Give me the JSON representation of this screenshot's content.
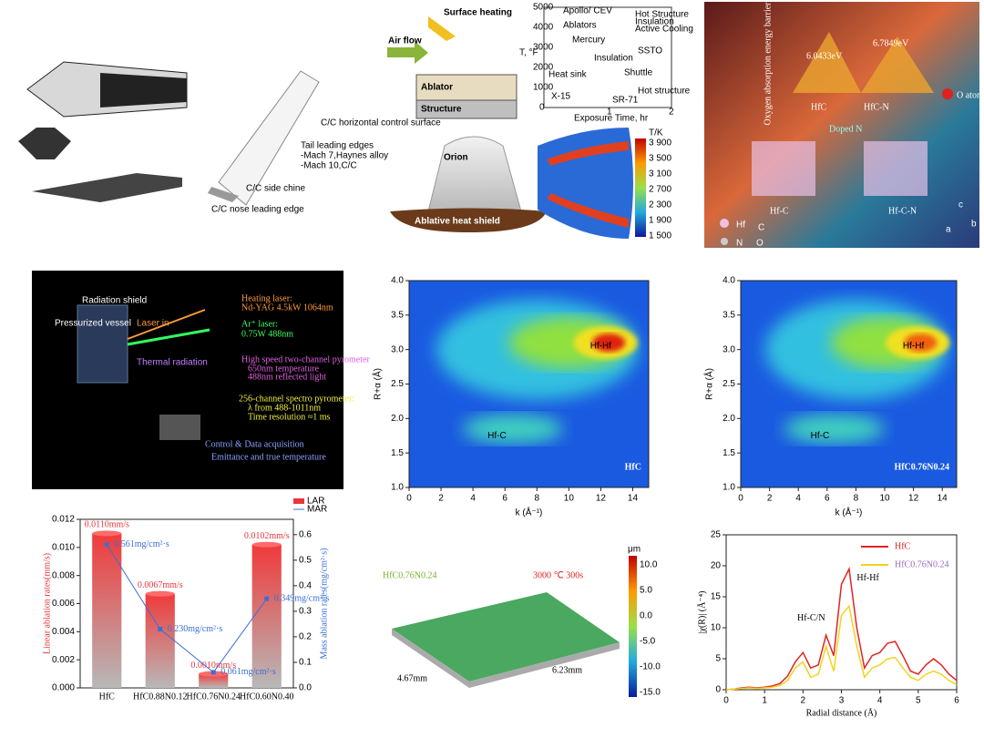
{
  "panels": {
    "vehicle": {
      "labels": [
        "C/C horizontal control surface",
        "Tail leading edges",
        "-Mach 7,Haynes alloy",
        "-Mach 10,C/C",
        "C/C side chine",
        "C/C nose leading edge"
      ]
    },
    "heating": {
      "labels": [
        "Surface heating",
        "Air flow",
        "Ablator",
        "Structure",
        "Orion",
        "Ablative heat shield"
      ],
      "inset": [
        "Apollo/ CEV",
        "Ablators",
        "Mercury",
        "Hot Structure",
        "Insulation",
        "Active Cooling",
        "SSTO",
        "Heat sink",
        "X-15",
        "Insulation",
        "Shuttle",
        "SR-71",
        "Hot structure",
        "T, °F",
        "Exposure Time, hr"
      ],
      "inset_yticks": [
        "5000",
        "4000",
        "3000",
        "2000",
        "1000",
        "0"
      ],
      "inset_xticks": [
        "1",
        "2"
      ],
      "colorbar_title": "T/K",
      "colorbar_ticks": [
        "3 900",
        "3 500",
        "3 100",
        "2 700",
        "2 300",
        "1 900",
        "1 500"
      ]
    },
    "dft": {
      "axis": "Oxygen absorption energy barrier",
      "barriers": [
        "6.0433eV",
        "6.7849eV"
      ],
      "labels": [
        "HfC",
        "HfC-N",
        "Doped N",
        "O atom",
        "Hf-C",
        "Hf-C-N"
      ],
      "legend": [
        "Hf",
        "C",
        "N",
        "O"
      ],
      "axes": [
        "a",
        "b",
        "c"
      ]
    },
    "setup": {
      "labels": [
        "Radiation shield",
        "Pressurized vessel",
        "Laser in",
        "Thermal radiation",
        "Heating laser:",
        "Nd-YAG 4.5kW 1064nm",
        "Ar⁺ laser:",
        "0.75W 488nm",
        "High speed two-channel pyrometer",
        "650nm  temperature",
        "488nm  reflected light",
        "256-channel spectro pyrometer:",
        "λ from 488-1011nm",
        "Time resolution ≈1 ms",
        "Control & Data acquisition",
        "Emittance and true temperature"
      ]
    },
    "surface": {
      "sample": "HfC0.76N0.24",
      "condition": "3000 ℃  300s",
      "dims": [
        "4.67mm",
        "6.23mm"
      ],
      "unit": "μm",
      "colorbar_ticks": [
        "10.0",
        "5.0",
        "0.0",
        "-5.0",
        "-10.0",
        "-15.0"
      ]
    }
  },
  "chart_data": [
    {
      "type": "bar",
      "categories": [
        "HfC",
        "HfC0.88N0.12",
        "HfC0.76N0.24",
        "HfC0.60N0.40"
      ],
      "ylabel": "Linear ablation rates(mm/s)",
      "y2label": "Mass ablation rates(mg/cm²·s)",
      "ylim": [
        0,
        0.012
      ],
      "yticks": [
        {
          "value": 0,
          "label": "0.000"
        },
        0.002,
        0.004,
        0.006,
        0.008,
        {
          "value": 0.01,
          "label": "0.010"
        },
        0.012
      ],
      "y2lim": [
        0,
        0.66
      ],
      "y2ticks": [
        {
          "value": 0,
          "label": "0.0"
        },
        0.1,
        0.2,
        0.3,
        0.4,
        0.5,
        0.6
      ],
      "legend": "top-right",
      "series": [
        {
          "name": "LAR",
          "color": "#e8363a",
          "values": [
            0.011,
            0.0067,
            0.001,
            0.0102
          ],
          "value_labels": [
            "0.0110mm/s",
            "0.0067mm/s",
            "0.0010mm/s",
            "0.0102mm/s"
          ]
        },
        {
          "name": "MAR",
          "color": "#3a6fd8",
          "axis": "y2",
          "values": [
            0.561,
            0.23,
            0.061,
            0.349
          ],
          "value_labels": [
            "0.561mg/cm²·s",
            "0.230mg/cm²·s",
            "0.061mg/cm²·s",
            "0.349mg/cm²·s"
          ]
        }
      ]
    },
    {
      "type": "contour",
      "label": "HfC",
      "xlabel": "k (Å⁻¹)",
      "ylabel": "R+α (Å)",
      "annotations": [
        "Hf-Hf",
        "Hf-C"
      ],
      "xlim": [
        0,
        15
      ],
      "xticks": [
        0,
        2,
        4,
        6,
        8,
        10,
        12,
        14
      ],
      "ylim": [
        1,
        4
      ],
      "yticks": [
        {
          "value": 1,
          "label": "1.0"
        },
        1.5,
        {
          "value": 2,
          "label": "2.0"
        },
        2.5,
        {
          "value": 3,
          "label": "3.0"
        },
        3.5,
        {
          "value": 4,
          "label": "4.0"
        }
      ]
    },
    {
      "type": "contour",
      "label": "HfC0.76N0.24",
      "xlabel": "k (Å⁻¹)",
      "ylabel": "R+α (Å)",
      "annotations": [
        "Hf-Hf",
        "Hf-C"
      ],
      "xlim": [
        0,
        15
      ],
      "xticks": [
        0,
        2,
        4,
        6,
        8,
        10,
        12,
        14
      ],
      "ylim": [
        1,
        4
      ],
      "yticks": [
        {
          "value": 1,
          "label": "1.0"
        },
        1.5,
        {
          "value": 2,
          "label": "2.0"
        },
        2.5,
        {
          "value": 3,
          "label": "3.0"
        },
        3.5,
        {
          "value": 4,
          "label": "4.0"
        }
      ]
    },
    {
      "type": "line",
      "xlabel": "Radial distance (Å)",
      "ylabel": "|χ(R)| (Å⁻⁴)",
      "annotations": [
        "Hf-C/N",
        "Hf-Hf"
      ],
      "xlim": [
        0,
        6
      ],
      "xticks": [
        0,
        1,
        2,
        3,
        4,
        5,
        6
      ],
      "ylim": [
        0,
        25
      ],
      "yticks": [
        0,
        5,
        10,
        15,
        20,
        25
      ],
      "legend": "top-right",
      "x": [
        0,
        0.2,
        0.4,
        0.6,
        0.8,
        1,
        1.2,
        1.4,
        1.6,
        1.8,
        2,
        2.2,
        2.4,
        2.6,
        2.8,
        3,
        3.2,
        3.4,
        3.6,
        3.8,
        4,
        4.2,
        4.4,
        4.6,
        4.8,
        5,
        5.2,
        5.4,
        5.6,
        5.8,
        6
      ],
      "series": [
        {
          "name": "HfC",
          "color": "#e02424",
          "values": [
            0,
            0.1,
            0.3,
            0.4,
            0.3,
            0.4,
            0.6,
            1,
            2.2,
            4.5,
            6,
            3.5,
            4,
            8.8,
            5.5,
            17,
            19.5,
            10,
            3.5,
            5.5,
            6,
            7.5,
            7.8,
            5.5,
            3,
            2.5,
            4,
            5,
            4,
            2.5,
            1.5
          ]
        },
        {
          "name": "HfC0.76N0.24",
          "color": "#f2d320",
          "values": [
            0,
            0.1,
            0.2,
            0.3,
            0.2,
            0.3,
            0.4,
            0.7,
            1.5,
            3.5,
            4.5,
            2,
            2.5,
            7,
            3,
            12,
            13.5,
            7,
            2,
            3.5,
            4,
            5,
            5.2,
            3.5,
            2,
            1.5,
            2.5,
            3,
            2.5,
            1.5,
            0.8
          ]
        }
      ]
    }
  ]
}
